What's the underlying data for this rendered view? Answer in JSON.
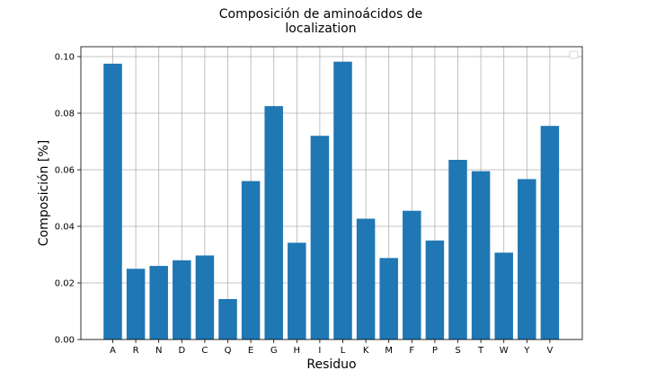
{
  "chart_data": {
    "type": "bar",
    "title_lines": [
      "Composición de aminoácidos de",
      "localization"
    ],
    "xlabel": "Residuo",
    "ylabel": "Composición [%]",
    "categories": [
      "A",
      "R",
      "N",
      "D",
      "C",
      "Q",
      "E",
      "G",
      "H",
      "I",
      "L",
      "K",
      "M",
      "F",
      "P",
      "S",
      "T",
      "W",
      "Y",
      "V"
    ],
    "values": [
      0.0975,
      0.025,
      0.026,
      0.028,
      0.0297,
      0.0143,
      0.056,
      0.0825,
      0.0342,
      0.072,
      0.0982,
      0.0427,
      0.0288,
      0.0455,
      0.035,
      0.0635,
      0.0595,
      0.0307,
      0.0567,
      0.0755
    ],
    "yticks": [
      "0.00",
      "0.02",
      "0.04",
      "0.06",
      "0.08",
      "0.10"
    ],
    "ylim": [
      0,
      0.1035
    ],
    "grid": true,
    "legend": "top-right (empty)",
    "bar_color": "#1f77b4"
  }
}
